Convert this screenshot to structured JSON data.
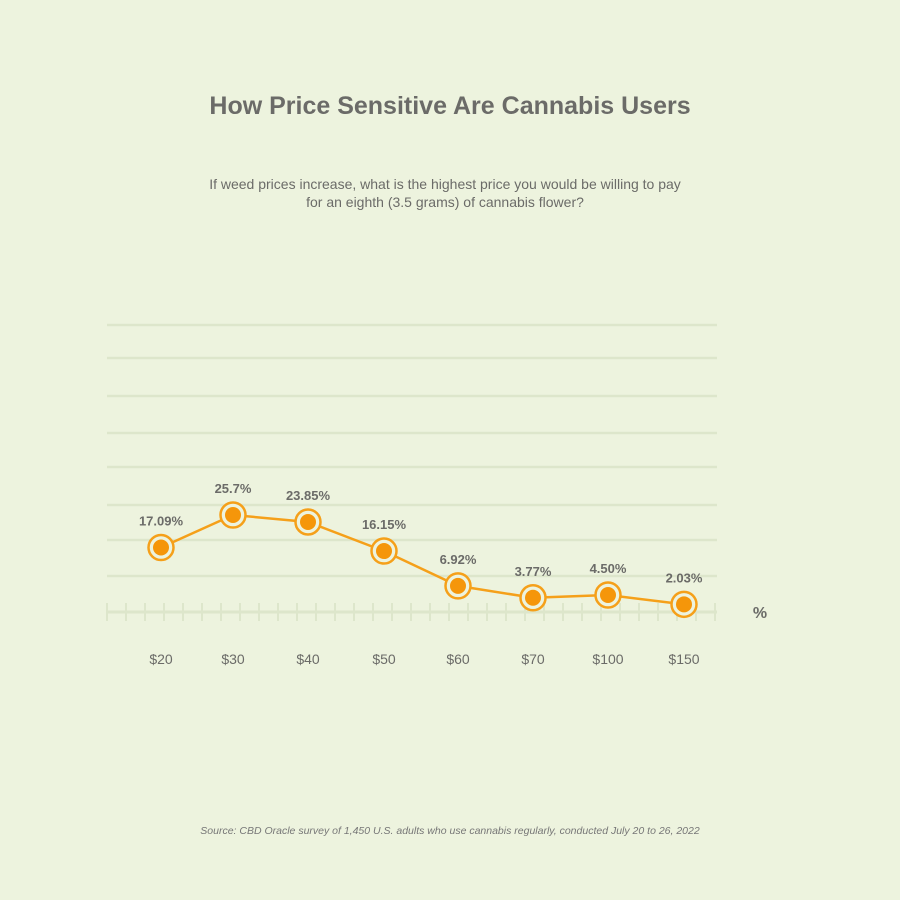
{
  "chart_data": {
    "type": "line",
    "title": "How Price Sensitive Are Cannabis Users",
    "subtitle": "If weed prices increase, what is the highest price you would be willing to pay for an eighth (3.5 grams) of cannabis flower?",
    "categories": [
      "$20",
      "$30",
      "$40",
      "$50",
      "$60",
      "$70",
      "$100",
      "$150"
    ],
    "values": [
      17.09,
      25.7,
      23.85,
      16.15,
      6.92,
      3.77,
      4.5,
      2.03
    ],
    "data_labels": [
      "17.09%",
      "25.7%",
      "23.85%",
      "16.15%",
      "6.92%",
      "3.77%",
      "4.50%",
      "2.03%"
    ],
    "ylabel": "%",
    "xlabel": "",
    "grid": true,
    "legend": "none",
    "source": "Source: CBD Oracle survey of 1,450 U.S. adults who use cannabis regularly, conducted July 20 to 26, 2022",
    "colors": {
      "line": "#f5a01a",
      "marker": "#f5960a",
      "text": "#6b6b68",
      "grid": "#dde6cb",
      "background": "#edf3de"
    }
  }
}
